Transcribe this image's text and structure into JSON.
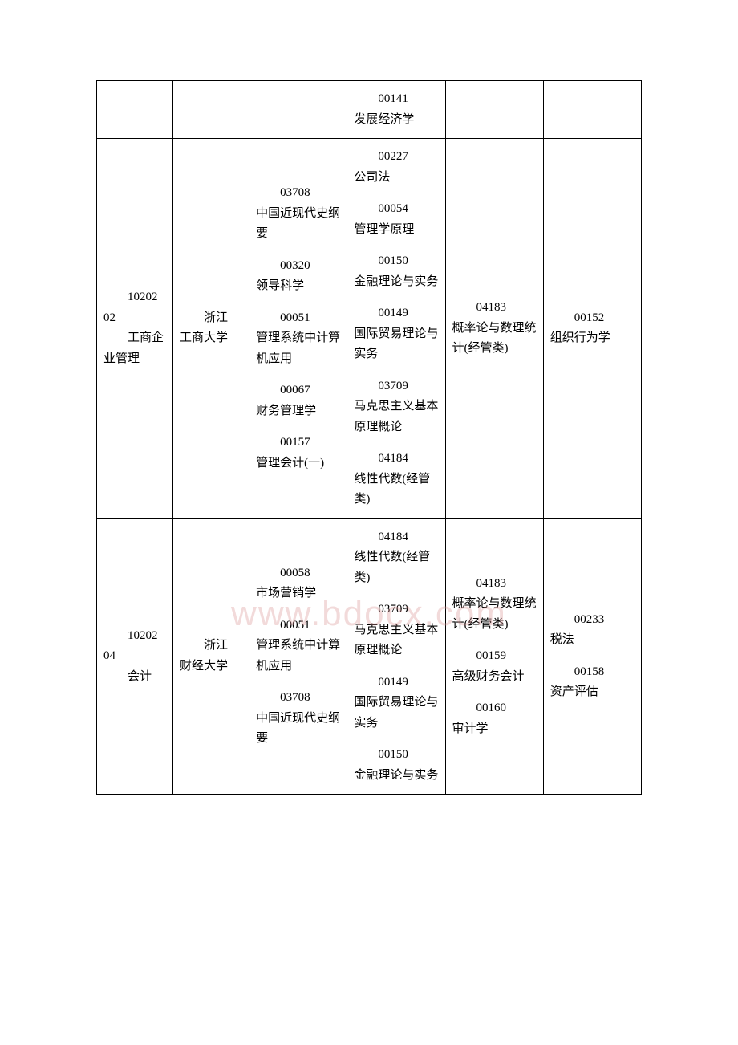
{
  "watermark": "www.bdocx.com",
  "table": {
    "columns_width": [
      "14%",
      "14%",
      "18%",
      "18%",
      "18%",
      "18%"
    ],
    "border_color": "#000000",
    "font_size": 15,
    "rows": [
      {
        "cells": [
          {
            "content": ""
          },
          {
            "content": ""
          },
          {
            "content": ""
          },
          {
            "courses": [
              {
                "code": "00141",
                "name": "发展经济学"
              }
            ]
          },
          {
            "content": ""
          },
          {
            "content": ""
          }
        ]
      },
      {
        "cells": [
          {
            "major": {
              "code": "10202",
              "num": "02",
              "name": "工商企业管理"
            }
          },
          {
            "university": {
              "line1": "浙江",
              "line2": "工商大学"
            }
          },
          {
            "courses": [
              {
                "code": "03708",
                "name": "中国近现代史纲要"
              },
              {
                "code": "00320",
                "name": "领导科学"
              },
              {
                "code": "00051",
                "name": "管理系统中计算机应用"
              },
              {
                "code": "00067",
                "name": "财务管理学"
              },
              {
                "code": "00157",
                "name": "管理会计(一)"
              }
            ]
          },
          {
            "courses": [
              {
                "code": "00227",
                "name": "公司法"
              },
              {
                "code": "00054",
                "name": "管理学原理"
              },
              {
                "code": "00150",
                "name": "金融理论与实务"
              },
              {
                "code": "00149",
                "name": "国际贸易理论与实务"
              },
              {
                "code": "03709",
                "name": "马克思主义基本原理概论"
              },
              {
                "code": "04184",
                "name": "线性代数(经管类)"
              }
            ]
          },
          {
            "courses": [
              {
                "code": "04183",
                "name": "概率论与数理统计(经管类)"
              }
            ]
          },
          {
            "courses": [
              {
                "code": "00152",
                "name": "组织行为学"
              }
            ]
          }
        ]
      },
      {
        "cells": [
          {
            "major": {
              "code": "10202",
              "num": "04",
              "name": "会计"
            }
          },
          {
            "university": {
              "line1": "浙江",
              "line2": "财经大学"
            }
          },
          {
            "courses": [
              {
                "code": "00058",
                "name": "市场营销学"
              },
              {
                "code": "00051",
                "name": "管理系统中计算机应用"
              },
              {
                "code": "03708",
                "name": "中国近现代史纲要"
              }
            ]
          },
          {
            "courses": [
              {
                "code": "04184",
                "name": "线性代数(经管类)"
              },
              {
                "code": "03709",
                "name": "马克思主义基本原理概论"
              },
              {
                "code": "00149",
                "name": "国际贸易理论与实务"
              },
              {
                "code": "00150",
                "name": "金融理论与实务"
              }
            ]
          },
          {
            "courses": [
              {
                "code": "04183",
                "name": "概率论与数理统计(经管类)"
              },
              {
                "code": "00159",
                "name": "高级财务会计"
              },
              {
                "code": "00160",
                "name": "审计学"
              }
            ]
          },
          {
            "courses": [
              {
                "code": "00233",
                "name": "税法"
              },
              {
                "code": "00158",
                "name": "资产评估"
              }
            ]
          }
        ]
      }
    ]
  }
}
